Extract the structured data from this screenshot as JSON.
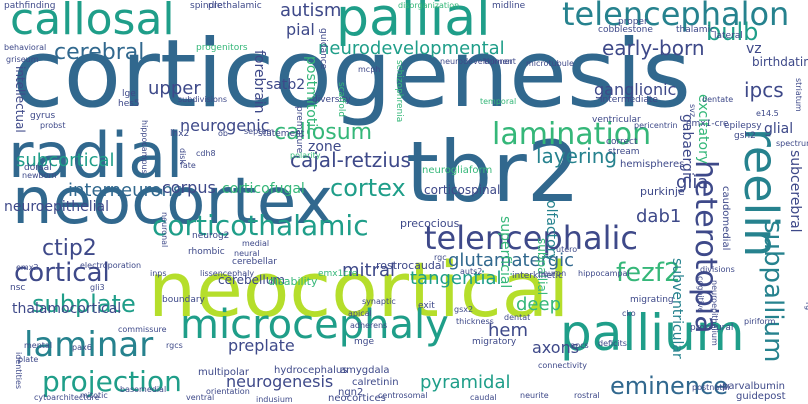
{
  "palette": {
    "yellow_green": "#b5de2b",
    "green": "#35b779",
    "teal": "#1f9e89",
    "blue_teal": "#26828e",
    "blue": "#31688e",
    "indigo": "#3e4989",
    "purple": "#482878",
    "dark_purple": "#440154",
    "background": "#ffffff"
  },
  "words": [
    {
      "text": "corticogenesis"
    },
    {
      "text": "neocortex"
    },
    {
      "text": "neocortical"
    },
    {
      "text": "radial"
    },
    {
      "text": "tbr2"
    },
    {
      "text": "pallial"
    },
    {
      "text": "callosal"
    },
    {
      "text": "microcephaly"
    },
    {
      "text": "pallium"
    },
    {
      "text": "telencephalon"
    },
    {
      "text": "corticothalamic"
    },
    {
      "text": "telencephalic"
    },
    {
      "text": "lamination"
    },
    {
      "text": "reelin"
    },
    {
      "text": "heterotopia"
    },
    {
      "text": "neurodevelopmental"
    },
    {
      "text": "early-born"
    },
    {
      "text": "cajal-retzius"
    },
    {
      "text": "cortex"
    },
    {
      "text": "subpallium"
    },
    {
      "text": "laminar"
    },
    {
      "text": "projection"
    },
    {
      "text": "ctip2"
    },
    {
      "text": "cortical"
    },
    {
      "text": "fezf2"
    },
    {
      "text": "subplate"
    },
    {
      "text": "cerebral"
    },
    {
      "text": "eminence"
    },
    {
      "text": "bulb"
    },
    {
      "text": "callosum"
    },
    {
      "text": "layering"
    },
    {
      "text": "subcortical"
    },
    {
      "text": "glutamatergic"
    },
    {
      "text": "tangential"
    },
    {
      "text": "pyramidal"
    },
    {
      "text": "interneurons"
    },
    {
      "text": "neurogenesis"
    },
    {
      "text": "autism"
    },
    {
      "text": "ipcs"
    },
    {
      "text": "dab1"
    },
    {
      "text": "glia"
    },
    {
      "text": "mitral"
    },
    {
      "text": "preplate"
    },
    {
      "text": "hem"
    },
    {
      "text": "deep"
    },
    {
      "text": "axons"
    },
    {
      "text": "upper"
    },
    {
      "text": "corpus"
    },
    {
      "text": "zone"
    },
    {
      "text": "pial"
    },
    {
      "text": "satb2"
    },
    {
      "text": "forebrain"
    },
    {
      "text": "postmitotic"
    },
    {
      "text": "ganglionic"
    },
    {
      "text": "gabaergic"
    },
    {
      "text": "excitatory"
    },
    {
      "text": "subcerebral"
    },
    {
      "text": "olfactory"
    },
    {
      "text": "subventricular"
    },
    {
      "text": "superficial"
    },
    {
      "text": "glial"
    },
    {
      "text": "vz"
    },
    {
      "text": "birthdating"
    },
    {
      "text": "neurogenic"
    },
    {
      "text": "corticofugal"
    },
    {
      "text": "neuroepithelial"
    },
    {
      "text": "thalamocortical"
    },
    {
      "text": "corticospinal"
    },
    {
      "text": "intellectual"
    },
    {
      "text": "subpallial"
    },
    {
      "text": "hemispheres"
    },
    {
      "text": "purkinje"
    },
    {
      "text": "caudomedial"
    },
    {
      "text": "cerebellum"
    },
    {
      "text": "disability"
    },
    {
      "text": "precocious"
    },
    {
      "text": "neurogliaform"
    },
    {
      "text": "rostrocaudal"
    },
    {
      "text": "multipolar"
    },
    {
      "text": "hydrocephalus"
    },
    {
      "text": "amygdala"
    },
    {
      "text": "ngn2"
    },
    {
      "text": "calretinin"
    },
    {
      "text": "neocortices"
    },
    {
      "text": "parvalbumin"
    },
    {
      "text": "guidepost"
    },
    {
      "text": "pathfinding"
    },
    {
      "text": "spindle"
    },
    {
      "text": "prethalamic"
    },
    {
      "text": "disorganization"
    },
    {
      "text": "midline"
    },
    {
      "text": "cobblestone"
    },
    {
      "text": "thalamic"
    },
    {
      "text": "lateral"
    },
    {
      "text": "proper"
    },
    {
      "text": "progenitors"
    },
    {
      "text": "guidance"
    },
    {
      "text": "mcph"
    },
    {
      "text": "neurodevelopment"
    },
    {
      "text": "thinner"
    },
    {
      "text": "microtubule"
    },
    {
      "text": "behavioral"
    },
    {
      "text": "griseum"
    },
    {
      "text": "lge"
    },
    {
      "text": "hes5"
    },
    {
      "text": "gyrus"
    },
    {
      "text": "probst"
    },
    {
      "text": "subdivisions"
    },
    {
      "text": "diversity"
    },
    {
      "text": "scaffold"
    },
    {
      "text": "schizophrenia"
    },
    {
      "text": "premature"
    },
    {
      "text": "temporal"
    },
    {
      "text": "intermediate"
    },
    {
      "text": "dentate"
    },
    {
      "text": "striatum"
    },
    {
      "text": "svz"
    },
    {
      "text": "e14.5"
    },
    {
      "text": "emx1-cre"
    },
    {
      "text": "epilepsy"
    },
    {
      "text": "pericentrin"
    },
    {
      "text": "ventricular"
    },
    {
      "text": "gsh2"
    },
    {
      "text": "spectrum"
    },
    {
      "text": "correct"
    },
    {
      "text": "stream"
    },
    {
      "text": "statement"
    },
    {
      "text": "polarity"
    },
    {
      "text": "septum"
    },
    {
      "text": "ob"
    },
    {
      "text": "lhx2"
    },
    {
      "text": "hippocampus"
    },
    {
      "text": "cdh8"
    },
    {
      "text": "fate"
    },
    {
      "text": "dorsal"
    },
    {
      "text": "newborn"
    },
    {
      "text": "disk"
    },
    {
      "text": "neuronal"
    },
    {
      "text": "neurog2"
    },
    {
      "text": "rhombic"
    },
    {
      "text": "cerebellar"
    },
    {
      "text": "medial"
    },
    {
      "text": "neural"
    },
    {
      "text": "rgc"
    },
    {
      "text": "utero"
    },
    {
      "text": "neuroepithelium"
    },
    {
      "text": "emx2"
    },
    {
      "text": "electroporation"
    },
    {
      "text": "inps"
    },
    {
      "text": "lissencephaly"
    },
    {
      "text": "emx1cre"
    },
    {
      "text": "auts2"
    },
    {
      "text": "interkinetic"
    },
    {
      "text": "neuron"
    },
    {
      "text": "hippocampal"
    },
    {
      "text": "divisions"
    },
    {
      "text": "cognitive"
    },
    {
      "text": "nsc"
    },
    {
      "text": "gli3"
    },
    {
      "text": "boundary"
    },
    {
      "text": "synaptic"
    },
    {
      "text": "apical"
    },
    {
      "text": "adherens"
    },
    {
      "text": "gsx2"
    },
    {
      "text": "thickness"
    },
    {
      "text": "dentat"
    },
    {
      "text": "migrating"
    },
    {
      "text": "cko"
    },
    {
      "text": "proneural"
    },
    {
      "text": "piriform"
    },
    {
      "text": "commissure"
    },
    {
      "text": "exit"
    },
    {
      "text": "rgcs"
    },
    {
      "text": "migratory"
    },
    {
      "text": "npcs"
    },
    {
      "text": "deficits"
    },
    {
      "text": "mental"
    },
    {
      "text": "pax6"
    },
    {
      "text": "plate"
    },
    {
      "text": "mge"
    },
    {
      "text": "connectivity"
    },
    {
      "text": "identities"
    },
    {
      "text": "basomedial"
    },
    {
      "text": "orientation"
    },
    {
      "text": "indusium"
    },
    {
      "text": "ventral"
    },
    {
      "text": "centrosomal"
    },
    {
      "text": "caudal"
    },
    {
      "text": "neurite"
    },
    {
      "text": "cytoarchitecture"
    },
    {
      "text": "mitotic"
    },
    {
      "text": "rostral"
    },
    {
      "text": "postnatal"
    },
    {
      "text": "rg"
    }
  ]
}
